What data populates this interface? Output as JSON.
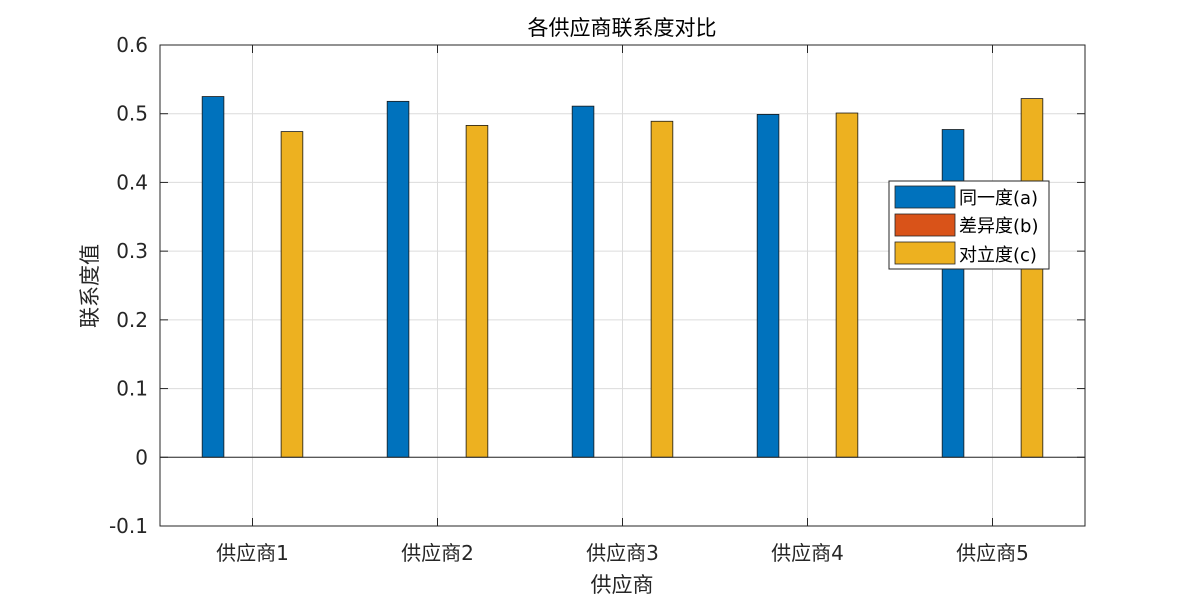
{
  "chart_data": {
    "type": "bar",
    "title": "各供应商联系度对比",
    "xlabel": "供应商",
    "ylabel": "联系度值",
    "categories": [
      "供应商1",
      "供应商2",
      "供应商3",
      "供应商4",
      "供应商5"
    ],
    "series": [
      {
        "name": "同一度(a)",
        "color": "#0072BD",
        "values": [
          0.525,
          0.518,
          0.511,
          0.499,
          0.477
        ]
      },
      {
        "name": "差异度(b)",
        "color": "#D95319",
        "values": [
          0,
          0,
          0,
          0,
          0
        ]
      },
      {
        "name": "对立度(c)",
        "color": "#EDB120",
        "values": [
          0.474,
          0.483,
          0.489,
          0.501,
          0.522
        ]
      }
    ],
    "ylim": [
      -0.1,
      0.6
    ],
    "yticks": [
      "-0.1",
      "0",
      "0.1",
      "0.2",
      "0.3",
      "0.4",
      "0.5",
      "0.6"
    ],
    "grid": true,
    "legend_position": "right"
  }
}
